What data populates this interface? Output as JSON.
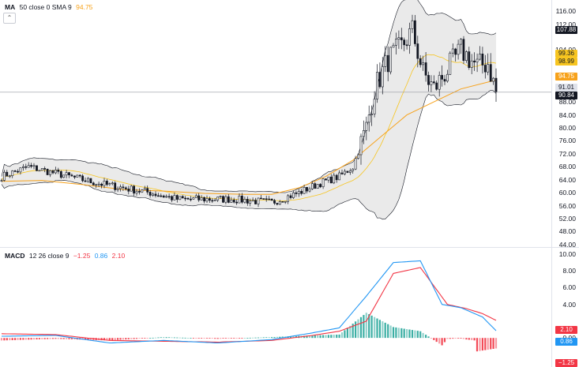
{
  "ma_legend": {
    "name": "MA",
    "params": "50 close 0 SMA 9",
    "value": "94.75",
    "value_color": "#f7a21b"
  },
  "macd_legend": {
    "name": "MACD",
    "params": "12 26 close 9",
    "hist": "−1.25",
    "macd": "0.86",
    "signal": "2.10",
    "hist_color": "#f23645",
    "macd_color": "#2196f3",
    "signal_color": "#f23645"
  },
  "collapse_icon": "chevron-up-icon",
  "price_tags": [
    {
      "value": "107.88",
      "bg": "#131722",
      "fg": "#ffffff"
    },
    {
      "value": "99.36",
      "bg": "#f7c520",
      "fg": "#131722"
    },
    {
      "value": "98.99",
      "bg": "#f7c520",
      "fg": "#131722"
    },
    {
      "value": "94.75",
      "bg": "#f7a21b",
      "fg": "#ffffff"
    },
    {
      "value": "91.01",
      "bg": "#e0e3eb",
      "fg": "#131722"
    },
    {
      "value": "90.84",
      "bg": "#131722",
      "fg": "#ffffff"
    }
  ],
  "macd_tags": [
    {
      "value": "2.10",
      "bg": "#f23645",
      "fg": "#ffffff"
    },
    {
      "value": "0.86",
      "bg": "#2196f3",
      "fg": "#ffffff"
    },
    {
      "value": "−1.25",
      "bg": "#f23645",
      "fg": "#ffffff"
    }
  ],
  "price_axis_labels": [
    "116.00",
    "112.00",
    "104.00",
    "96.00",
    "92.00",
    "88.00",
    "84.00",
    "80.00",
    "76.00",
    "72.00",
    "68.00",
    "64.00",
    "60.00",
    "56.00",
    "52.00",
    "48.00",
    "44.00"
  ],
  "macd_axis_labels": [
    "10.00",
    "8.00",
    "6.00",
    "4.00",
    "0.00"
  ],
  "colors": {
    "up": "#26a69a",
    "down": "#131722",
    "band_fill": "#e6e6e6",
    "band_line": "#131722",
    "ma": "#f7a21b",
    "bb_mid": "#f7c520",
    "macd_line": "#2196f3",
    "signal_line": "#f23645",
    "hist_up": "#26a69a",
    "hist_down": "#f23645"
  },
  "chart_data": [
    {
      "type": "candlestick",
      "title": "",
      "ylim": [
        44,
        116
      ],
      "y_ticks": [
        44,
        48,
        52,
        56,
        60,
        64,
        68,
        72,
        76,
        80,
        84,
        88,
        92,
        96,
        104,
        112,
        116
      ],
      "grid": false,
      "series": [
        {
          "name": "MA 50",
          "kind": "line",
          "values": [
            {
              "i": 0,
              "v": 63.5
            },
            {
              "i": 15,
              "v": 63.8
            },
            {
              "i": 30,
              "v": 62.5
            },
            {
              "i": 45,
              "v": 61
            },
            {
              "i": 60,
              "v": 60.5
            },
            {
              "i": 75,
              "v": 59.8
            },
            {
              "i": 90,
              "v": 59.5
            },
            {
              "i": 100,
              "v": 59.5
            },
            {
              "i": 110,
              "v": 61.5
            },
            {
              "i": 120,
              "v": 65
            },
            {
              "i": 130,
              "v": 70
            },
            {
              "i": 140,
              "v": 77
            },
            {
              "i": 150,
              "v": 84
            },
            {
              "i": 160,
              "v": 88
            },
            {
              "i": 170,
              "v": 92
            },
            {
              "i": 183,
              "v": 94.75
            }
          ]
        }
      ],
      "key_levels": [
        {
          "label": "107.88",
          "v": 107.88
        },
        {
          "label": "99.36",
          "v": 99.36
        },
        {
          "label": "98.99",
          "v": 98.99
        },
        {
          "label": "94.75",
          "v": 94.75
        },
        {
          "label": "91.01",
          "v": 91.01
        },
        {
          "label": "90.84",
          "v": 90.84
        }
      ],
      "candles_summary": {
        "count": 184,
        "last_close": 91.01,
        "high": 116.5,
        "low": 53.5
      }
    },
    {
      "type": "line",
      "title": "",
      "ylim": [
        -3,
        10
      ],
      "y_ticks": [
        0,
        4,
        6,
        8,
        10
      ],
      "series": [
        {
          "name": "MACD",
          "values": [
            {
              "i": 0,
              "v": 0.2
            },
            {
              "i": 20,
              "v": 0.3
            },
            {
              "i": 40,
              "v": -0.6
            },
            {
              "i": 60,
              "v": -0.3
            },
            {
              "i": 80,
              "v": -0.6
            },
            {
              "i": 100,
              "v": -0.2
            },
            {
              "i": 115,
              "v": 0.6
            },
            {
              "i": 125,
              "v": 1.2
            },
            {
              "i": 135,
              "v": 5
            },
            {
              "i": 145,
              "v": 9
            },
            {
              "i": 155,
              "v": 9.2
            },
            {
              "i": 163,
              "v": 4
            },
            {
              "i": 170,
              "v": 3.6
            },
            {
              "i": 178,
              "v": 2.5
            },
            {
              "i": 183,
              "v": 0.86
            }
          ]
        },
        {
          "name": "Signal",
          "values": [
            {
              "i": 0,
              "v": 0.5
            },
            {
              "i": 20,
              "v": 0.4
            },
            {
              "i": 40,
              "v": -0.3
            },
            {
              "i": 60,
              "v": -0.4
            },
            {
              "i": 80,
              "v": -0.5
            },
            {
              "i": 100,
              "v": -0.3
            },
            {
              "i": 115,
              "v": 0.3
            },
            {
              "i": 125,
              "v": 0.8
            },
            {
              "i": 135,
              "v": 2
            },
            {
              "i": 145,
              "v": 7.7
            },
            {
              "i": 155,
              "v": 8.4
            },
            {
              "i": 165,
              "v": 4
            },
            {
              "i": 172,
              "v": 3.5
            },
            {
              "i": 178,
              "v": 2.9
            },
            {
              "i": 183,
              "v": 2.1
            }
          ]
        }
      ],
      "histogram_summary": {
        "last": -1.25,
        "max": 2.6
      }
    }
  ]
}
